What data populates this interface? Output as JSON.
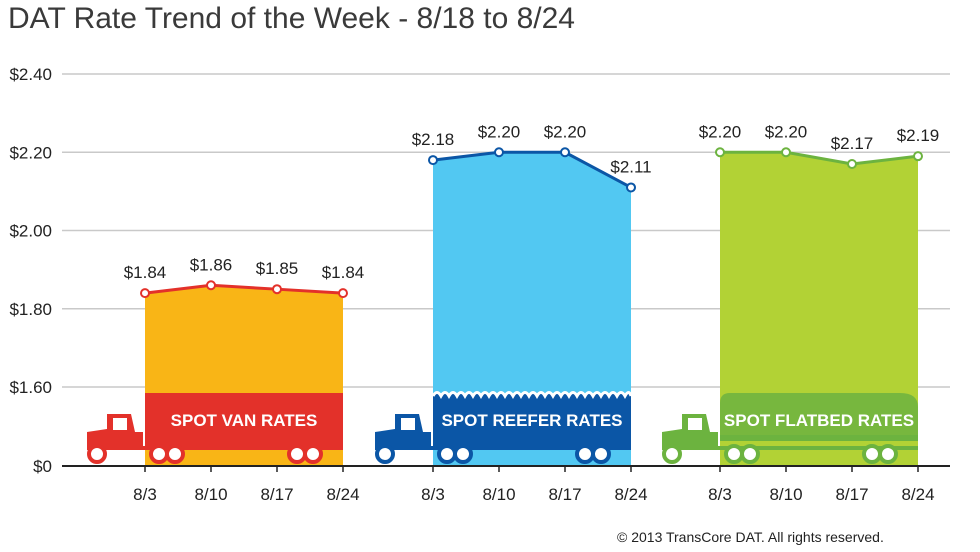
{
  "title": "DAT Rate Trend of the Week - 8/18 to 8/24",
  "copyright": "© 2013 TransCore DAT. All rights reserved.",
  "chart_data": {
    "type": "area",
    "title": "DAT Rate Trend of the Week - 8/18 to 8/24",
    "xlabel": "",
    "ylabel": "",
    "ylim": [
      0,
      2.4
    ],
    "y_ticks": [
      "$0",
      "$1.60",
      "$1.80",
      "$2.00",
      "$2.20",
      "$2.40"
    ],
    "y_scale": "broken axis between $0 and $1.60",
    "grid": true,
    "panels": [
      {
        "label": "SPOT VAN RATES",
        "color": "#f9b516",
        "truck_color": "#e3312a",
        "line_color": "#e3312a",
        "categories": [
          "8/3",
          "8/10",
          "8/17",
          "8/24"
        ],
        "values": [
          1.84,
          1.86,
          1.85,
          1.84
        ],
        "value_labels": [
          "$1.84",
          "$1.86",
          "$1.85",
          "$1.84"
        ]
      },
      {
        "label": "SPOT REEFER RATES",
        "color": "#52c8f2",
        "truck_color": "#0b56a6",
        "line_color": "#0b56a6",
        "categories": [
          "8/3",
          "8/10",
          "8/17",
          "8/24"
        ],
        "values": [
          2.18,
          2.2,
          2.2,
          2.11
        ],
        "value_labels": [
          "$2.18",
          "$2.20",
          "$2.20",
          "$2.11"
        ]
      },
      {
        "label": "SPOT FLATBED RATES",
        "color": "#b2d235",
        "truck_color": "#6cb33f",
        "line_color": "#6cb33f",
        "categories": [
          "8/3",
          "8/10",
          "8/17",
          "8/24"
        ],
        "values": [
          2.2,
          2.2,
          2.17,
          2.19
        ],
        "value_labels": [
          "$2.20",
          "$2.20",
          "$2.17",
          "$2.19"
        ]
      }
    ]
  }
}
